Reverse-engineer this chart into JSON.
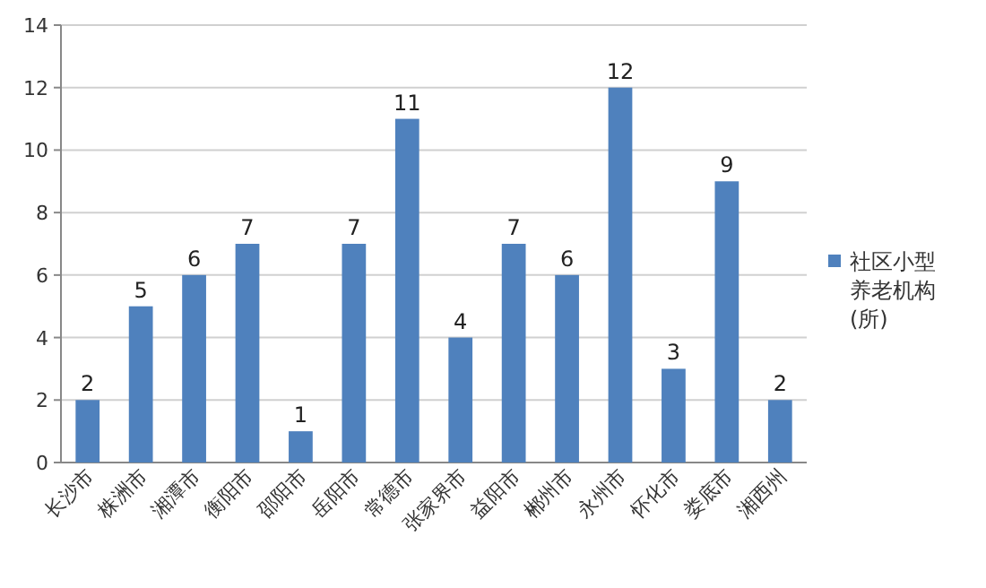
{
  "chart_data": {
    "type": "bar",
    "categories": [
      "长沙市",
      "株洲市",
      "湘潭市",
      "衡阳市",
      "邵阳市",
      "岳阳市",
      "常德市",
      "张家界市",
      "益阳市",
      "郴州市",
      "永州市",
      "怀化市",
      "娄底市",
      "湘西州"
    ],
    "series": [
      {
        "name": "社区小型养老机构(所)",
        "color": "#4f81bd",
        "values": [
          2,
          5,
          6,
          7,
          1,
          7,
          11,
          4,
          7,
          6,
          12,
          3,
          9,
          2
        ]
      }
    ],
    "ylim": [
      0,
      14
    ],
    "yticks": [
      0,
      2,
      4,
      6,
      8,
      10,
      12,
      14
    ],
    "grid": "y",
    "legend": "right",
    "data_labels": true
  }
}
